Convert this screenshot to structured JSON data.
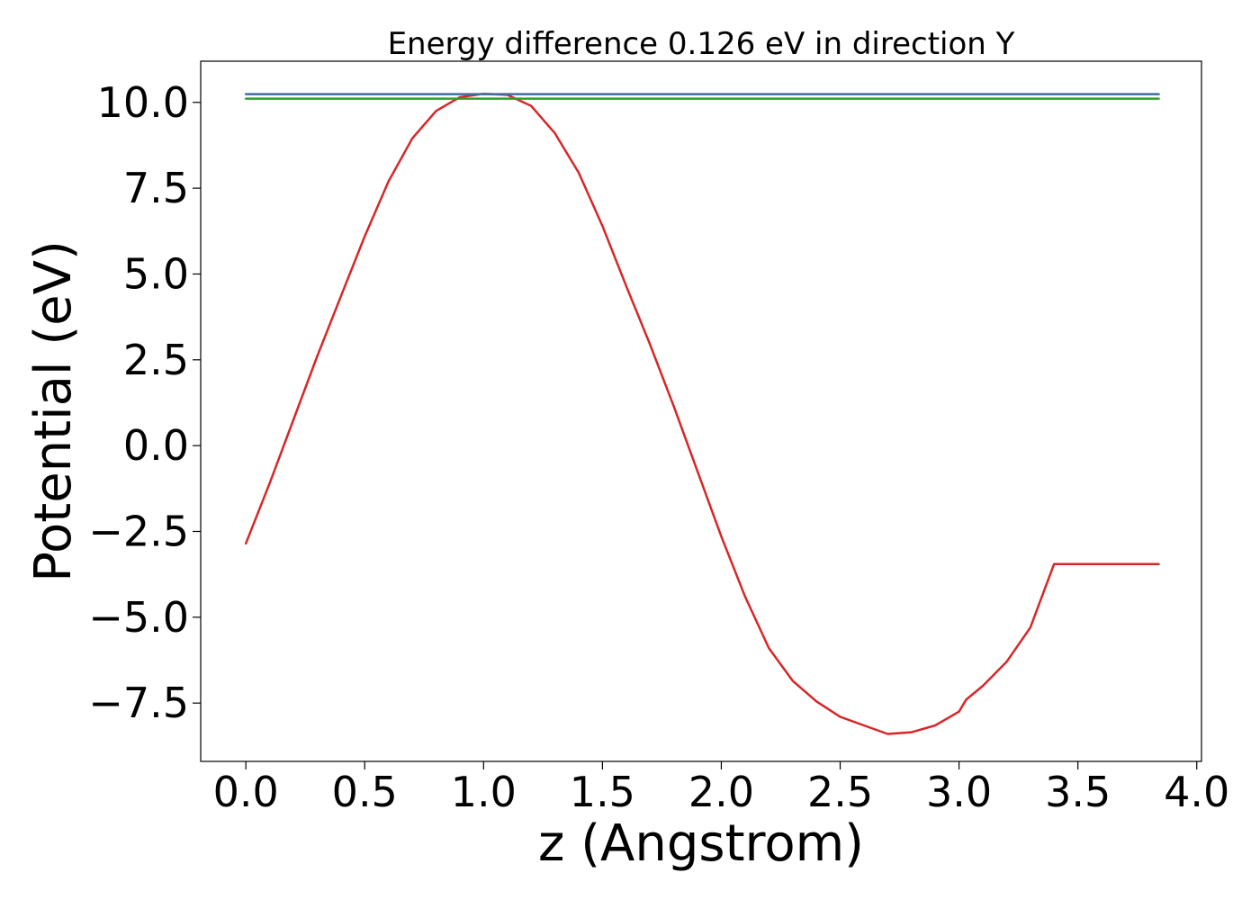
{
  "chart_data": {
    "type": "line",
    "title": "Energy difference 0.126 eV in direction Y",
    "xlabel": "z (Angstrom)",
    "ylabel": "Potential (eV)",
    "xlim": [
      -0.19,
      4.02
    ],
    "ylim": [
      -9.2,
      11.2
    ],
    "xticks": [
      0.0,
      0.5,
      1.0,
      1.5,
      2.0,
      2.5,
      3.0,
      3.5,
      4.0
    ],
    "xtick_labels": [
      "0.0",
      "0.5",
      "1.0",
      "1.5",
      "2.0",
      "2.5",
      "3.0",
      "3.5",
      "4.0"
    ],
    "yticks": [
      -7.5,
      -5.0,
      -2.5,
      0.0,
      2.5,
      5.0,
      7.5,
      10.0
    ],
    "ytick_labels": [
      "−7.5",
      "−5.0",
      "−2.5",
      "0.0",
      "2.5",
      "5.0",
      "7.5",
      "10.0"
    ],
    "grid": false,
    "series": [
      {
        "color": "#d62728",
        "x": [
          0.0,
          0.1,
          0.2,
          0.3,
          0.4,
          0.5,
          0.6,
          0.7,
          0.8,
          0.9,
          1.0,
          1.1,
          1.2,
          1.3,
          1.4,
          1.5,
          1.6,
          1.7,
          1.8,
          1.9,
          2.0,
          2.1,
          2.2,
          2.3,
          2.4,
          2.5,
          2.6,
          2.7,
          2.8,
          2.9,
          3.0,
          3.03,
          3.1,
          3.2,
          3.3,
          3.4,
          3.5,
          3.6,
          3.7,
          3.84
        ],
        "y": [
          -2.85,
          -1.1,
          0.75,
          2.6,
          4.35,
          6.1,
          7.7,
          8.95,
          9.75,
          10.15,
          10.25,
          10.22,
          9.9,
          9.1,
          7.95,
          6.4,
          4.65,
          2.95,
          1.15,
          -0.75,
          -2.65,
          -4.4,
          -5.9,
          -6.85,
          -7.45,
          -7.9,
          -8.15,
          -8.4,
          -8.35,
          -8.15,
          -7.75,
          -7.4,
          -7.0,
          -6.3,
          -5.3,
          -3.45,
          -3.45,
          -3.45,
          -3.45,
          -3.45
        ]
      },
      {
        "color": "#3a6ea5",
        "x": [
          0.0,
          3.84
        ],
        "y": [
          10.24,
          10.24
        ]
      },
      {
        "color": "#2ca02c",
        "x": [
          0.0,
          3.84
        ],
        "y": [
          10.11,
          10.11
        ]
      }
    ]
  }
}
